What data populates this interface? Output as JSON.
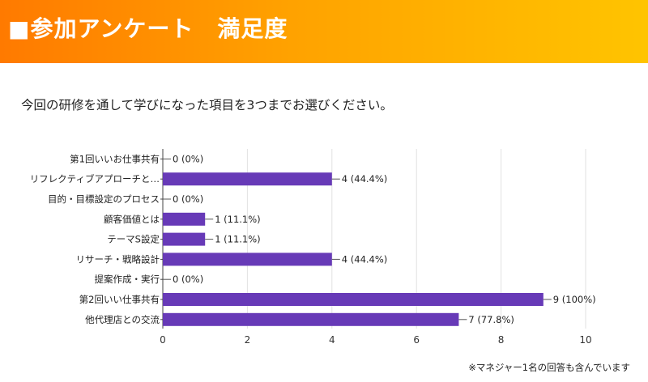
{
  "header": {
    "title": "■参加アンケート　満足度"
  },
  "question": "今回の研修を通して学びになった項目を3つまでお選びください。",
  "footnote": "※マネジャー1名の回答も含んでいます",
  "colors": {
    "bar": "#673ab7",
    "banner_start": "#ff7a00",
    "banner_end": "#ffc400"
  },
  "chart_data": {
    "type": "bar",
    "orientation": "horizontal",
    "categories": [
      "第1回いいお仕事共有",
      "リフレクティブアプローチと…",
      "目的・目標設定のプロセス",
      "顧客価値とは",
      "テーマS設定",
      "リサーチ・戦略設計",
      "提案作成・実行",
      "第2回いい仕事共有",
      "他代理店との交流"
    ],
    "values": [
      0,
      4,
      0,
      1,
      1,
      4,
      0,
      9,
      7
    ],
    "data_labels": [
      "0 (0%)",
      "4 (44.4%)",
      "0 (0%)",
      "1 (11.1%)",
      "1 (11.1%)",
      "4 (44.4%)",
      "0 (0%)",
      "9 (100%)",
      "7 (77.8%)"
    ],
    "xlim": [
      0,
      10
    ],
    "xticks": [
      0,
      2,
      4,
      6,
      8,
      10
    ],
    "grid": true,
    "title": "",
    "xlabel": "",
    "ylabel": ""
  }
}
